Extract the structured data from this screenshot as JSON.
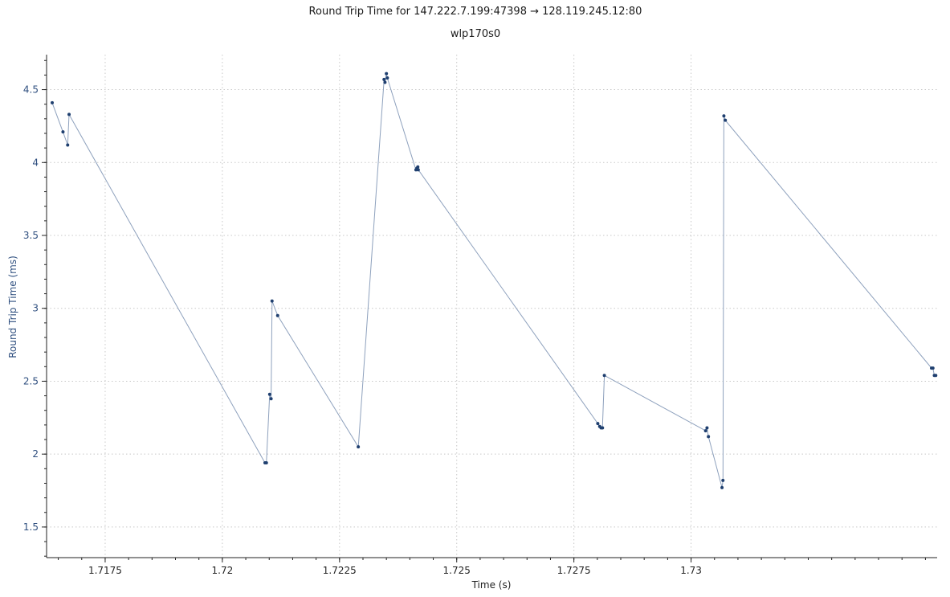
{
  "chart_data": {
    "type": "line",
    "title": "Round Trip Time for 147.222.7.199:47398 → 128.119.245.12:80",
    "subtitle": "wlp170s0",
    "xlabel": "Time (s)",
    "ylabel": "Round Trip Time (ms)",
    "xlim": [
      1.71625,
      1.73525
    ],
    "ylim": [
      1.29,
      4.74
    ],
    "x_ticks": [
      1.7175,
      1.72,
      1.7225,
      1.725,
      1.7275,
      1.73
    ],
    "x_tick_labels": [
      "1.7175",
      "1.72",
      "1.7225",
      "1.725",
      "1.7275",
      "1.73"
    ],
    "y_ticks": [
      1.5,
      2,
      2.5,
      3,
      3.5,
      4,
      4.5
    ],
    "y_tick_labels": [
      "1.5",
      "2",
      "2.5",
      "3",
      "3.5",
      "4",
      "4.5"
    ],
    "grid": true,
    "colors": {
      "line": "#8ea1bd",
      "marker": "#1f3f6f",
      "y_axis_text": "#2f4f7f"
    },
    "x": [
      1.71637,
      1.7166,
      1.7167,
      1.71673,
      1.72091,
      1.72094,
      1.72101,
      1.72104,
      1.72106,
      1.72118,
      1.7229,
      1.72345,
      1.72347,
      1.7235,
      1.72352,
      1.72413,
      1.72415,
      1.72417,
      1.72418,
      1.72801,
      1.72805,
      1.72808,
      1.72811,
      1.72815,
      1.73031,
      1.73034,
      1.73037,
      1.73066,
      1.73068,
      1.7307,
      1.73073,
      1.73513,
      1.73516,
      1.73519,
      1.73522
    ],
    "y": [
      4.41,
      4.21,
      4.12,
      4.33,
      1.94,
      1.94,
      2.41,
      2.38,
      3.05,
      2.95,
      2.05,
      4.57,
      4.55,
      4.61,
      4.58,
      3.95,
      3.96,
      3.97,
      3.95,
      2.21,
      2.19,
      2.18,
      2.18,
      2.54,
      2.16,
      2.18,
      2.12,
      1.77,
      1.82,
      4.32,
      4.29,
      2.59,
      2.59,
      2.54,
      2.54
    ]
  }
}
